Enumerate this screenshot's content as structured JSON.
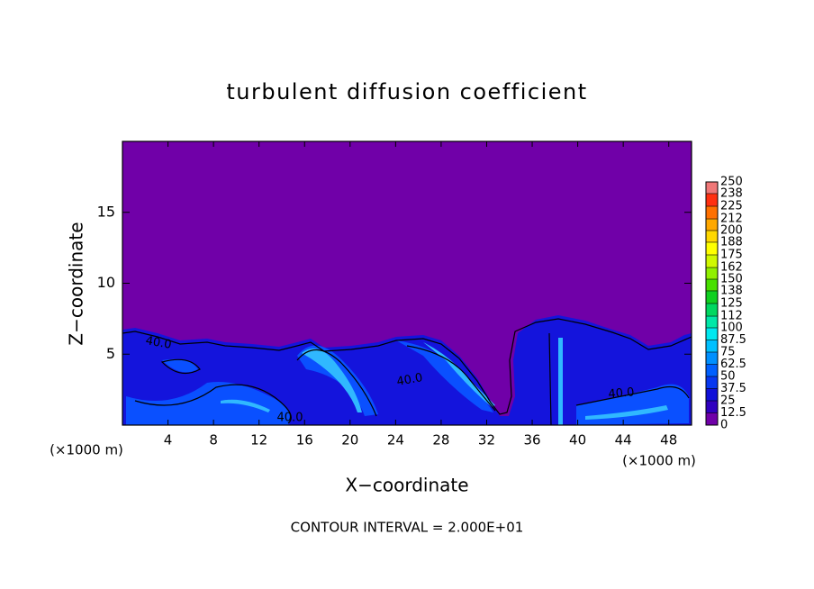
{
  "chart_data": {
    "type": "contour",
    "title": "turbulent diffusion coefficient",
    "x_label": "X−coordinate",
    "y_label": "Z−coordinate",
    "x_unit_label": "(×1000 m)",
    "xlim": [
      0,
      50
    ],
    "xticks": [
      4,
      8,
      12,
      16,
      20,
      24,
      28,
      32,
      36,
      40,
      44,
      48
    ],
    "ylim": [
      0,
      20
    ],
    "yticks": [
      5,
      10,
      15
    ],
    "colorbar": {
      "levels": [
        0,
        12.5,
        25,
        37.5,
        50,
        62.5,
        75,
        87.5,
        100,
        112,
        125,
        138,
        150,
        162,
        175,
        188,
        200,
        212,
        225,
        238,
        250
      ],
      "colors": [
        "#7000a8",
        "#3000c0",
        "#1010d8",
        "#0838f0",
        "#0060ff",
        "#0090ff",
        "#00c0ff",
        "#00e8f0",
        "#00e8a8",
        "#00d860",
        "#10d020",
        "#48e000",
        "#90f000",
        "#d0f800",
        "#ffff00",
        "#ffd800",
        "#ffa800",
        "#ff7000",
        "#ff3010",
        "#f07878"
      ]
    },
    "contour_labels": [
      "40.0",
      "40.0",
      "40.0",
      "40.0"
    ],
    "footer": "CONTOUR INTERVAL = 2.000E+01"
  }
}
